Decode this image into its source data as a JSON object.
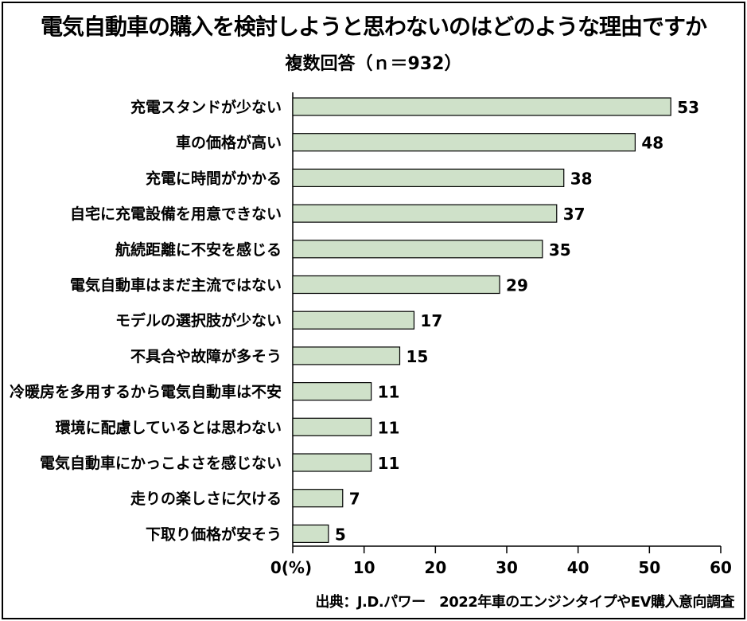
{
  "chart_data": {
    "type": "bar",
    "orientation": "horizontal",
    "title": "電気自動車の購入を検討しようと思わないのはどのような理由ですか",
    "subtitle": "複数回答（ｎ＝932）",
    "categories": [
      "充電スタンドが少ない",
      "車の価格が高い",
      "充電に時間がかかる",
      "自宅に充電設備を用意できない",
      "航続距離に不安を感じる",
      "電気自動車はまだ主流ではない",
      "モデルの選択肢が少ない",
      "不具合や故障が多そう",
      "冷暖房を多用するから電気自動車は不安",
      "環境に配慮しているとは思わない",
      "電気自動車にかっこよさを感じない",
      "走りの楽しさに欠ける",
      "下取り価格が安そう"
    ],
    "values": [
      53,
      48,
      38,
      37,
      35,
      29,
      17,
      15,
      11,
      11,
      11,
      7,
      5
    ],
    "xlim": [
      0,
      60
    ],
    "xticks": [
      "0(%)",
      "10",
      "20",
      "30",
      "40",
      "50",
      "60"
    ],
    "xtick_values": [
      0,
      10,
      20,
      30,
      40,
      50,
      60
    ],
    "grid": false,
    "colors": {
      "bar_fill": "#cfe1c9",
      "bar_stroke": "#000000"
    },
    "source": "出典：J.D.パワー　2022年車のエンジンタイプやEV購入意向調査"
  }
}
